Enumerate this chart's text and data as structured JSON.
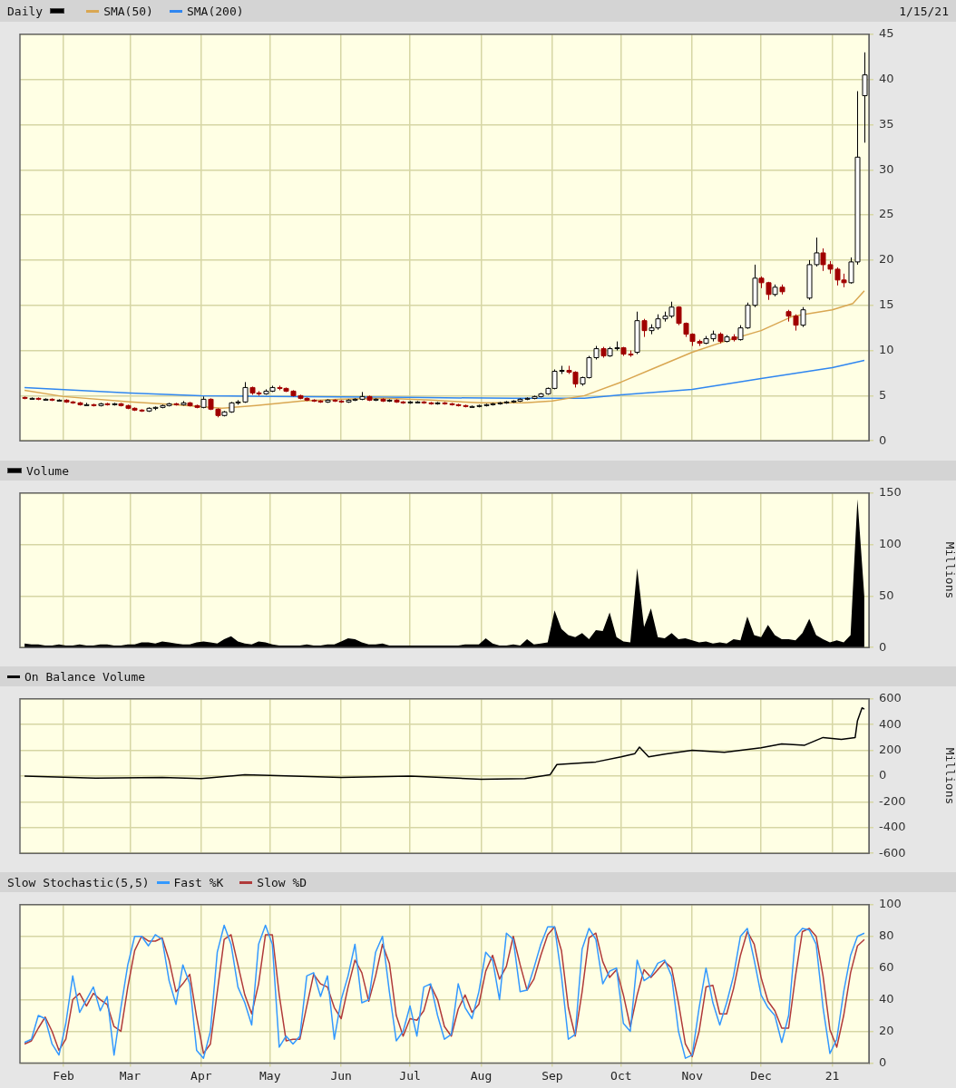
{
  "chart_data": [
    {
      "type": "candlestick",
      "title": "Daily",
      "color": "#000000",
      "legend": "top left",
      "annotations": [
        "1/15/21"
      ],
      "grid": true,
      "tick_labels": "y",
      "xlim": [
        "2020-01-13",
        "2021-01-17"
      ],
      "xticks": [
        {
          "value": "2020-02-01",
          "label": null
        },
        {
          "value": "2020-03-01",
          "label": null
        },
        {
          "value": "2020-04-01",
          "label": null
        },
        {
          "value": "2020-05-01",
          "label": null
        },
        {
          "value": "2020-06-01",
          "label": null
        },
        {
          "value": "2020-07-01",
          "label": null
        },
        {
          "value": "2020-08-01",
          "label": null
        },
        {
          "value": "2020-09-01",
          "label": null
        },
        {
          "value": "2020-10-01",
          "label": null
        },
        {
          "value": "2020-11-01",
          "label": null
        },
        {
          "value": "2020-12-01",
          "label": null
        },
        {
          "value": "2021-01-01",
          "label": null
        }
      ],
      "ylim": [
        0,
        45
      ],
      "yticks": [
        0,
        5,
        10,
        15,
        20,
        25,
        30,
        35,
        40,
        45
      ],
      "x": [
        "2020-01-15",
        "2020-01-18",
        "2020-01-21",
        "2020-01-24",
        "2020-01-27",
        "2020-01-30",
        "2020-02-02",
        "2020-02-05",
        "2020-02-08",
        "2020-02-11",
        "2020-02-14",
        "2020-02-17",
        "2020-02-20",
        "2020-02-23",
        "2020-02-26",
        "2020-02-29",
        "2020-03-03",
        "2020-03-06",
        "2020-03-09",
        "2020-03-12",
        "2020-03-15",
        "2020-03-18",
        "2020-03-21",
        "2020-03-24",
        "2020-03-27",
        "2020-03-30",
        "2020-04-02",
        "2020-04-05",
        "2020-04-08",
        "2020-04-11",
        "2020-04-14",
        "2020-04-17",
        "2020-04-20",
        "2020-04-23",
        "2020-04-26",
        "2020-04-29",
        "2020-05-02",
        "2020-05-05",
        "2020-05-08",
        "2020-05-11",
        "2020-05-14",
        "2020-05-17",
        "2020-05-20",
        "2020-05-23",
        "2020-05-26",
        "2020-05-29",
        "2020-06-01",
        "2020-06-04",
        "2020-06-07",
        "2020-06-10",
        "2020-06-13",
        "2020-06-16",
        "2020-06-19",
        "2020-06-22",
        "2020-06-25",
        "2020-06-28",
        "2020-07-01",
        "2020-07-04",
        "2020-07-07",
        "2020-07-10",
        "2020-07-13",
        "2020-07-16",
        "2020-07-19",
        "2020-07-22",
        "2020-07-25",
        "2020-07-28",
        "2020-07-31",
        "2020-08-03",
        "2020-08-06",
        "2020-08-09",
        "2020-08-12",
        "2020-08-15",
        "2020-08-18",
        "2020-08-21",
        "2020-08-24",
        "2020-08-27",
        "2020-08-30",
        "2020-09-02",
        "2020-09-05",
        "2020-09-08",
        "2020-09-11",
        "2020-09-14",
        "2020-09-17",
        "2020-09-20",
        "2020-09-23",
        "2020-09-26",
        "2020-09-29",
        "2020-10-02",
        "2020-10-05",
        "2020-10-08",
        "2020-10-11",
        "2020-10-14",
        "2020-10-17",
        "2020-10-20",
        "2020-10-23",
        "2020-10-26",
        "2020-10-29",
        "2020-11-01",
        "2020-11-04",
        "2020-11-07",
        "2020-11-10",
        "2020-11-13",
        "2020-11-16",
        "2020-11-19",
        "2020-11-22",
        "2020-11-25",
        "2020-11-28",
        "2020-12-01",
        "2020-12-04",
        "2020-12-07",
        "2020-12-10",
        "2020-12-13",
        "2020-12-16",
        "2020-12-19",
        "2020-12-22",
        "2020-12-25",
        "2020-12-28",
        "2020-12-31",
        "2021-01-03",
        "2021-01-06",
        "2021-01-09",
        "2021-01-12",
        "2021-01-15"
      ],
      "ohlc": [
        [
          4.8,
          4.9,
          4.6,
          4.7
        ],
        [
          4.7,
          4.8,
          4.6,
          4.7
        ],
        [
          4.7,
          4.8,
          4.5,
          4.6
        ],
        [
          4.6,
          4.7,
          4.5,
          4.6
        ],
        [
          4.6,
          4.7,
          4.4,
          4.5
        ],
        [
          4.5,
          4.6,
          4.4,
          4.5
        ],
        [
          4.5,
          4.6,
          4.2,
          4.3
        ],
        [
          4.3,
          4.4,
          4.1,
          4.2
        ],
        [
          4.2,
          4.3,
          3.9,
          4.0
        ],
        [
          4.0,
          4.2,
          3.9,
          4.0
        ],
        [
          4.0,
          4.1,
          3.8,
          3.9
        ],
        [
          3.9,
          4.2,
          3.8,
          4.1
        ],
        [
          4.1,
          4.2,
          3.9,
          4.0
        ],
        [
          4.0,
          4.2,
          3.9,
          4.1
        ],
        [
          4.1,
          4.2,
          3.8,
          3.9
        ],
        [
          3.9,
          4.0,
          3.5,
          3.6
        ],
        [
          3.6,
          3.7,
          3.3,
          3.4
        ],
        [
          3.4,
          3.5,
          3.2,
          3.3
        ],
        [
          3.3,
          3.7,
          3.2,
          3.6
        ],
        [
          3.6,
          3.8,
          3.4,
          3.7
        ],
        [
          3.7,
          4.0,
          3.6,
          3.9
        ],
        [
          3.9,
          4.2,
          3.8,
          4.1
        ],
        [
          4.1,
          4.2,
          3.9,
          4.0
        ],
        [
          4.0,
          4.4,
          3.9,
          4.2
        ],
        [
          4.2,
          4.3,
          3.8,
          3.9
        ],
        [
          3.9,
          4.0,
          3.6,
          3.7
        ],
        [
          3.7,
          4.9,
          3.6,
          4.6
        ],
        [
          4.6,
          4.7,
          3.4,
          3.5
        ],
        [
          3.5,
          3.6,
          2.6,
          2.8
        ],
        [
          2.8,
          3.3,
          2.7,
          3.2
        ],
        [
          3.2,
          4.3,
          3.1,
          4.2
        ],
        [
          4.2,
          4.5,
          4.0,
          4.3
        ],
        [
          4.3,
          6.5,
          4.2,
          5.9
        ],
        [
          5.9,
          6.0,
          5.1,
          5.3
        ],
        [
          5.3,
          5.5,
          5.0,
          5.2
        ],
        [
          5.2,
          5.7,
          5.1,
          5.5
        ],
        [
          5.5,
          6.1,
          5.4,
          5.9
        ],
        [
          5.9,
          6.1,
          5.6,
          5.8
        ],
        [
          5.8,
          5.9,
          5.4,
          5.5
        ],
        [
          5.5,
          5.6,
          4.9,
          5.0
        ],
        [
          5.0,
          5.1,
          4.6,
          4.7
        ],
        [
          4.7,
          4.8,
          4.4,
          4.5
        ],
        [
          4.5,
          4.6,
          4.3,
          4.4
        ],
        [
          4.4,
          4.5,
          4.2,
          4.3
        ],
        [
          4.3,
          4.6,
          4.2,
          4.5
        ],
        [
          4.5,
          4.6,
          4.3,
          4.4
        ],
        [
          4.4,
          4.5,
          4.2,
          4.3
        ],
        [
          4.3,
          4.6,
          4.2,
          4.5
        ],
        [
          4.5,
          4.7,
          4.4,
          4.6
        ],
        [
          4.6,
          5.4,
          4.5,
          4.9
        ],
        [
          4.9,
          5.0,
          4.4,
          4.5
        ],
        [
          4.5,
          4.7,
          4.4,
          4.6
        ],
        [
          4.6,
          4.7,
          4.3,
          4.4
        ],
        [
          4.4,
          4.6,
          4.3,
          4.5
        ],
        [
          4.5,
          4.6,
          4.2,
          4.3
        ],
        [
          4.3,
          4.4,
          4.1,
          4.2
        ],
        [
          4.2,
          4.4,
          4.1,
          4.3
        ],
        [
          4.3,
          4.4,
          4.2,
          4.3
        ],
        [
          4.3,
          4.4,
          4.1,
          4.2
        ],
        [
          4.2,
          4.3,
          4.0,
          4.1
        ],
        [
          4.1,
          4.3,
          4.0,
          4.2
        ],
        [
          4.2,
          4.3,
          4.0,
          4.1
        ],
        [
          4.1,
          4.2,
          3.9,
          4.0
        ],
        [
          4.0,
          4.1,
          3.8,
          3.9
        ],
        [
          3.9,
          4.0,
          3.7,
          3.8
        ],
        [
          3.8,
          3.9,
          3.7,
          3.8
        ],
        [
          3.8,
          4.0,
          3.7,
          3.9
        ],
        [
          3.9,
          4.1,
          3.8,
          4.0
        ],
        [
          4.0,
          4.2,
          3.9,
          4.1
        ],
        [
          4.1,
          4.3,
          4.0,
          4.2
        ],
        [
          4.2,
          4.4,
          4.1,
          4.3
        ],
        [
          4.3,
          4.5,
          4.2,
          4.4
        ],
        [
          4.4,
          4.7,
          4.3,
          4.6
        ],
        [
          4.6,
          4.8,
          4.5,
          4.7
        ],
        [
          4.7,
          5.0,
          4.6,
          4.9
        ],
        [
          4.9,
          5.3,
          4.8,
          5.2
        ],
        [
          5.2,
          5.9,
          5.1,
          5.8
        ],
        [
          5.8,
          7.9,
          5.7,
          7.7
        ],
        [
          7.7,
          8.3,
          7.4,
          7.8
        ],
        [
          7.8,
          8.3,
          7.4,
          7.6
        ],
        [
          7.6,
          7.7,
          5.9,
          6.3
        ],
        [
          6.3,
          7.1,
          6.1,
          7.0
        ],
        [
          7.0,
          9.4,
          6.9,
          9.2
        ],
        [
          9.2,
          10.5,
          9.0,
          10.2
        ],
        [
          10.2,
          10.4,
          9.2,
          9.4
        ],
        [
          9.4,
          10.4,
          9.3,
          10.2
        ],
        [
          10.2,
          11.0,
          10.0,
          10.3
        ],
        [
          10.3,
          10.4,
          9.4,
          9.6
        ],
        [
          9.6,
          10.0,
          9.3,
          9.5
        ],
        [
          9.8,
          14.3,
          9.6,
          13.3
        ],
        [
          13.3,
          13.5,
          11.5,
          12.2
        ],
        [
          12.2,
          12.9,
          11.8,
          12.5
        ],
        [
          12.5,
          14.0,
          12.3,
          13.5
        ],
        [
          13.5,
          14.3,
          13.2,
          13.8
        ],
        [
          13.8,
          15.4,
          13.6,
          14.8
        ],
        [
          14.8,
          14.9,
          12.8,
          13.0
        ],
        [
          13.0,
          13.1,
          11.5,
          11.8
        ],
        [
          11.8,
          11.9,
          10.5,
          11.0
        ],
        [
          11.0,
          11.2,
          10.5,
          10.8
        ],
        [
          10.8,
          11.6,
          10.7,
          11.3
        ],
        [
          11.3,
          12.2,
          11.0,
          11.8
        ],
        [
          11.8,
          12.0,
          10.8,
          11.0
        ],
        [
          11.0,
          11.7,
          10.9,
          11.5
        ],
        [
          11.5,
          11.8,
          11.0,
          11.2
        ],
        [
          11.2,
          12.8,
          11.1,
          12.5
        ],
        [
          12.5,
          15.3,
          12.4,
          15.0
        ],
        [
          15.0,
          19.5,
          14.8,
          18.0
        ],
        [
          18.0,
          18.2,
          16.9,
          17.5
        ],
        [
          17.5,
          17.6,
          15.6,
          16.2
        ],
        [
          16.2,
          17.3,
          16.0,
          17.0
        ],
        [
          17.0,
          17.3,
          16.2,
          16.5
        ],
        [
          14.3,
          14.5,
          13.2,
          13.8
        ],
        [
          13.8,
          14.0,
          12.2,
          12.8
        ],
        [
          12.8,
          14.8,
          12.6,
          14.5
        ],
        [
          15.8,
          20.0,
          15.6,
          19.5
        ],
        [
          19.5,
          22.5,
          19.3,
          20.8
        ],
        [
          20.8,
          21.3,
          18.8,
          19.5
        ],
        [
          19.5,
          19.9,
          18.5,
          19.0
        ],
        [
          19.0,
          19.2,
          17.2,
          17.8
        ],
        [
          17.8,
          18.5,
          17.0,
          17.5
        ],
        [
          17.5,
          20.3,
          17.4,
          19.8
        ],
        [
          19.8,
          38.7,
          19.5,
          31.4
        ],
        [
          38.2,
          43.0,
          33.0,
          40.5
        ]
      ],
      "colors": [
        "#a00000",
        "#ffffff",
        "#a00000",
        "#ffffff",
        "#a00000",
        "#ffffff",
        "#a00000",
        "#a00000",
        "#a00000",
        "#ffffff",
        "#a00000",
        "#ffffff",
        "#a00000",
        "#ffffff",
        "#a00000",
        "#a00000",
        "#a00000",
        "#a00000",
        "#ffffff",
        "#ffffff",
        "#ffffff",
        "#ffffff",
        "#a00000",
        "#ffffff",
        "#a00000",
        "#a00000",
        "#ffffff",
        "#a00000",
        "#a00000",
        "#ffffff",
        "#ffffff",
        "#ffffff",
        "#ffffff",
        "#a00000",
        "#a00000",
        "#ffffff",
        "#ffffff",
        "#a00000",
        "#a00000",
        "#a00000",
        "#a00000",
        "#a00000",
        "#a00000",
        "#a00000",
        "#ffffff",
        "#a00000",
        "#a00000",
        "#ffffff",
        "#ffffff",
        "#ffffff",
        "#a00000",
        "#ffffff",
        "#a00000",
        "#ffffff",
        "#a00000",
        "#a00000",
        "#ffffff",
        "#ffffff",
        "#a00000",
        "#a00000",
        "#ffffff",
        "#a00000",
        "#a00000",
        "#a00000",
        "#a00000",
        "#ffffff",
        "#ffffff",
        "#ffffff",
        "#ffffff",
        "#ffffff",
        "#ffffff",
        "#ffffff",
        "#ffffff",
        "#ffffff",
        "#ffffff",
        "#ffffff",
        "#ffffff",
        "#ffffff",
        "#ffffff",
        "#a00000",
        "#a00000",
        "#ffffff",
        "#ffffff",
        "#ffffff",
        "#a00000",
        "#ffffff",
        "#ffffff",
        "#a00000",
        "#a00000",
        "#ffffff",
        "#a00000",
        "#ffffff",
        "#ffffff",
        "#ffffff",
        "#ffffff",
        "#a00000",
        "#a00000",
        "#a00000",
        "#a00000",
        "#ffffff",
        "#ffffff",
        "#a00000",
        "#ffffff",
        "#a00000",
        "#ffffff",
        "#ffffff",
        "#ffffff",
        "#a00000",
        "#a00000",
        "#ffffff",
        "#a00000",
        "#a00000",
        "#a00000",
        "#ffffff",
        "#ffffff",
        "#ffffff",
        "#a00000",
        "#a00000",
        "#a00000",
        "#a00000",
        "#ffffff",
        "#ffffff",
        "#ffffff"
      ],
      "series": [
        {
          "name": "SMA(50)",
          "type": "line",
          "color": "#d9a752",
          "x": [
            "2020-01-15",
            "2020-02-01",
            "2020-03-01",
            "2020-03-20",
            "2020-04-10",
            "2020-04-25",
            "2020-05-15",
            "2020-06-01",
            "2020-06-20",
            "2020-07-10",
            "2020-08-01",
            "2020-08-20",
            "2020-09-01",
            "2020-09-15",
            "2020-10-01",
            "2020-10-15",
            "2020-11-01",
            "2020-11-15",
            "2020-12-01",
            "2020-12-15",
            "2021-01-01",
            "2021-01-10",
            "2021-01-15"
          ],
          "values": [
            5.6,
            4.9,
            4.3,
            4.0,
            3.6,
            3.9,
            4.4,
            4.6,
            4.7,
            4.5,
            4.2,
            4.2,
            4.4,
            5.0,
            6.5,
            8.0,
            9.8,
            11.0,
            12.2,
            13.8,
            14.5,
            15.2,
            16.6
          ]
        },
        {
          "name": "SMA(200)",
          "type": "line",
          "color": "#2f86f0",
          "x": [
            "2020-01-15",
            "2020-03-01",
            "2020-04-01",
            "2020-05-01",
            "2020-07-01",
            "2020-08-15",
            "2020-09-15",
            "2020-10-01",
            "2020-11-01",
            "2020-12-01",
            "2021-01-01",
            "2021-01-15"
          ],
          "values": [
            5.9,
            5.3,
            5.0,
            4.9,
            4.8,
            4.7,
            4.7,
            5.1,
            5.7,
            6.9,
            8.1,
            8.9
          ]
        }
      ]
    },
    {
      "type": "area",
      "legend": "top left",
      "grid": true,
      "tick_labels": "y",
      "ylabel": "Millions",
      "xlim": [
        "2020-01-13",
        "2021-01-17"
      ],
      "xticks": [
        {
          "value": "2020-02-01",
          "label": null
        },
        {
          "value": "2020-03-01",
          "label": null
        },
        {
          "value": "2020-04-01",
          "label": null
        },
        {
          "value": "2020-05-01",
          "label": null
        },
        {
          "value": "2020-06-01",
          "label": null
        },
        {
          "value": "2020-07-01",
          "label": null
        },
        {
          "value": "2020-08-01",
          "label": null
        },
        {
          "value": "2020-09-01",
          "label": null
        },
        {
          "value": "2020-10-01",
          "label": null
        },
        {
          "value": "2020-11-01",
          "label": null
        },
        {
          "value": "2020-12-01",
          "label": null
        },
        {
          "value": "2021-01-01",
          "label": null
        }
      ],
      "ylim": [
        0,
        150
      ],
      "yticks": [
        0,
        50,
        100,
        150
      ],
      "x": [
        "2020-01-15",
        "2020-01-18",
        "2020-01-21",
        "2020-01-24",
        "2020-01-27",
        "2020-01-30",
        "2020-02-02",
        "2020-02-05",
        "2020-02-08",
        "2020-02-11",
        "2020-02-14",
        "2020-02-17",
        "2020-02-20",
        "2020-02-23",
        "2020-02-26",
        "2020-02-29",
        "2020-03-03",
        "2020-03-06",
        "2020-03-09",
        "2020-03-12",
        "2020-03-15",
        "2020-03-18",
        "2020-03-21",
        "2020-03-24",
        "2020-03-27",
        "2020-03-30",
        "2020-04-02",
        "2020-04-05",
        "2020-04-08",
        "2020-04-11",
        "2020-04-14",
        "2020-04-17",
        "2020-04-20",
        "2020-04-23",
        "2020-04-26",
        "2020-04-29",
        "2020-05-02",
        "2020-05-05",
        "2020-05-08",
        "2020-05-11",
        "2020-05-14",
        "2020-05-17",
        "2020-05-20",
        "2020-05-23",
        "2020-05-26",
        "2020-05-29",
        "2020-06-01",
        "2020-06-04",
        "2020-06-07",
        "2020-06-10",
        "2020-06-13",
        "2020-06-16",
        "2020-06-19",
        "2020-06-22",
        "2020-06-25",
        "2020-06-28",
        "2020-07-01",
        "2020-07-04",
        "2020-07-07",
        "2020-07-10",
        "2020-07-13",
        "2020-07-16",
        "2020-07-19",
        "2020-07-22",
        "2020-07-25",
        "2020-07-28",
        "2020-07-31",
        "2020-08-03",
        "2020-08-06",
        "2020-08-09",
        "2020-08-12",
        "2020-08-15",
        "2020-08-18",
        "2020-08-21",
        "2020-08-24",
        "2020-08-27",
        "2020-08-30",
        "2020-09-02",
        "2020-09-05",
        "2020-09-08",
        "2020-09-11",
        "2020-09-14",
        "2020-09-17",
        "2020-09-20",
        "2020-09-23",
        "2020-09-26",
        "2020-09-29",
        "2020-10-02",
        "2020-10-05",
        "2020-10-08",
        "2020-10-11",
        "2020-10-14",
        "2020-10-17",
        "2020-10-20",
        "2020-10-23",
        "2020-10-26",
        "2020-10-29",
        "2020-11-01",
        "2020-11-04",
        "2020-11-07",
        "2020-11-10",
        "2020-11-13",
        "2020-11-16",
        "2020-11-19",
        "2020-11-22",
        "2020-11-25",
        "2020-11-28",
        "2020-12-01",
        "2020-12-04",
        "2020-12-07",
        "2020-12-10",
        "2020-12-13",
        "2020-12-16",
        "2020-12-19",
        "2020-12-22",
        "2020-12-25",
        "2020-12-28",
        "2020-12-31",
        "2021-01-03",
        "2021-01-06",
        "2021-01-09",
        "2021-01-12",
        "2021-01-15"
      ],
      "series": [
        {
          "name": "Volume",
          "color": "#000000",
          "values": [
            4,
            3,
            3,
            2,
            2,
            3,
            2,
            2,
            3,
            2,
            2,
            3,
            3,
            2,
            2,
            3,
            3,
            5,
            5,
            4,
            6,
            5,
            4,
            3,
            3,
            5,
            6,
            5,
            4,
            8,
            11,
            6,
            4,
            3,
            6,
            5,
            3,
            2,
            2,
            2,
            2,
            3,
            2,
            2,
            3,
            3,
            6,
            9,
            8,
            5,
            3,
            3,
            4,
            2,
            2,
            2,
            2,
            2,
            2,
            2,
            2,
            2,
            2,
            2,
            3,
            3,
            3,
            9,
            4,
            2,
            2,
            3,
            2,
            8,
            3,
            4,
            5,
            36,
            18,
            12,
            10,
            14,
            8,
            17,
            16,
            34,
            10,
            6,
            5,
            77,
            20,
            38,
            10,
            9,
            14,
            8,
            9,
            7,
            5,
            6,
            4,
            5,
            4,
            8,
            7,
            30,
            12,
            10,
            22,
            12,
            8,
            8,
            7,
            14,
            28,
            12,
            8,
            5,
            7,
            5,
            12,
            144,
            50
          ]
        }
      ]
    },
    {
      "type": "line",
      "legend": "top left",
      "grid": true,
      "tick_labels": "y",
      "ylabel": "Millions",
      "xlim": [
        "2020-01-13",
        "2021-01-17"
      ],
      "xticks": [
        {
          "value": "2020-02-01",
          "label": null
        },
        {
          "value": "2020-03-01",
          "label": null
        },
        {
          "value": "2020-04-01",
          "label": null
        },
        {
          "value": "2020-05-01",
          "label": null
        },
        {
          "value": "2020-06-01",
          "label": null
        },
        {
          "value": "2020-07-01",
          "label": null
        },
        {
          "value": "2020-08-01",
          "label": null
        },
        {
          "value": "2020-09-01",
          "label": null
        },
        {
          "value": "2020-10-01",
          "label": null
        },
        {
          "value": "2020-11-01",
          "label": null
        },
        {
          "value": "2020-12-01",
          "label": null
        },
        {
          "value": "2021-01-01",
          "label": null
        }
      ],
      "ylim": [
        -600,
        600
      ],
      "yticks": [
        -600,
        -400,
        -200,
        0,
        200,
        400,
        600
      ],
      "series": [
        {
          "name": "On Balance Volume",
          "color": "#000000",
          "x": [
            "2020-01-15",
            "2020-02-15",
            "2020-03-15",
            "2020-04-01",
            "2020-04-20",
            "2020-05-01",
            "2020-06-01",
            "2020-07-01",
            "2020-08-01",
            "2020-08-20",
            "2020-08-31",
            "2020-09-03",
            "2020-09-20",
            "2020-10-01",
            "2020-10-07",
            "2020-10-09",
            "2020-10-13",
            "2020-10-20",
            "2020-11-01",
            "2020-11-15",
            "2020-12-01",
            "2020-12-10",
            "2020-12-20",
            "2020-12-28",
            "2021-01-05",
            "2021-01-11",
            "2021-01-12",
            "2021-01-14",
            "2021-01-15"
          ],
          "values": [
            0,
            -15,
            -10,
            -20,
            10,
            5,
            -10,
            0,
            -25,
            -20,
            10,
            90,
            110,
            150,
            175,
            225,
            150,
            170,
            200,
            185,
            220,
            250,
            240,
            300,
            285,
            300,
            430,
            530,
            520
          ]
        }
      ]
    },
    {
      "type": "line",
      "title": "Slow Stochastic(5,5)",
      "legend": "top left",
      "grid": true,
      "xlim": [
        "2020-01-13",
        "2021-01-17"
      ],
      "xticks": [
        {
          "value": "2020-02-01",
          "label": "Feb"
        },
        {
          "value": "2020-03-01",
          "label": "Mar"
        },
        {
          "value": "2020-04-01",
          "label": "Apr"
        },
        {
          "value": "2020-05-01",
          "label": "May"
        },
        {
          "value": "2020-06-01",
          "label": "Jun"
        },
        {
          "value": "2020-07-01",
          "label": "Jul"
        },
        {
          "value": "2020-08-01",
          "label": "Aug"
        },
        {
          "value": "2020-09-01",
          "label": "Sep"
        },
        {
          "value": "2020-10-01",
          "label": "Oct"
        },
        {
          "value": "2020-11-01",
          "label": "Nov"
        },
        {
          "value": "2020-12-01",
          "label": "Dec"
        },
        {
          "value": "2021-01-01",
          "label": "21"
        }
      ],
      "ylim": [
        0,
        100
      ],
      "yticks": [
        0,
        20,
        40,
        60,
        80,
        100
      ],
      "x": [
        "2020-01-15",
        "2020-01-18",
        "2020-01-21",
        "2020-01-24",
        "2020-01-27",
        "2020-01-30",
        "2020-02-02",
        "2020-02-05",
        "2020-02-08",
        "2020-02-11",
        "2020-02-14",
        "2020-02-17",
        "2020-02-20",
        "2020-02-23",
        "2020-02-26",
        "2020-02-29",
        "2020-03-03",
        "2020-03-06",
        "2020-03-09",
        "2020-03-12",
        "2020-03-15",
        "2020-03-18",
        "2020-03-21",
        "2020-03-24",
        "2020-03-27",
        "2020-03-30",
        "2020-04-02",
        "2020-04-05",
        "2020-04-08",
        "2020-04-11",
        "2020-04-14",
        "2020-04-17",
        "2020-04-20",
        "2020-04-23",
        "2020-04-26",
        "2020-04-29",
        "2020-05-02",
        "2020-05-05",
        "2020-05-08",
        "2020-05-11",
        "2020-05-14",
        "2020-05-17",
        "2020-05-20",
        "2020-05-23",
        "2020-05-26",
        "2020-05-29",
        "2020-06-01",
        "2020-06-04",
        "2020-06-07",
        "2020-06-10",
        "2020-06-13",
        "2020-06-16",
        "2020-06-19",
        "2020-06-22",
        "2020-06-25",
        "2020-06-28",
        "2020-07-01",
        "2020-07-04",
        "2020-07-07",
        "2020-07-10",
        "2020-07-13",
        "2020-07-16",
        "2020-07-19",
        "2020-07-22",
        "2020-07-25",
        "2020-07-28",
        "2020-07-31",
        "2020-08-03",
        "2020-08-06",
        "2020-08-09",
        "2020-08-12",
        "2020-08-15",
        "2020-08-18",
        "2020-08-21",
        "2020-08-24",
        "2020-08-27",
        "2020-08-30",
        "2020-09-02",
        "2020-09-05",
        "2020-09-08",
        "2020-09-11",
        "2020-09-14",
        "2020-09-17",
        "2020-09-20",
        "2020-09-23",
        "2020-09-26",
        "2020-09-29",
        "2020-10-02",
        "2020-10-05",
        "2020-10-08",
        "2020-10-11",
        "2020-10-14",
        "2020-10-17",
        "2020-10-20",
        "2020-10-23",
        "2020-10-26",
        "2020-10-29",
        "2020-11-01",
        "2020-11-04",
        "2020-11-07",
        "2020-11-10",
        "2020-11-13",
        "2020-11-16",
        "2020-11-19",
        "2020-11-22",
        "2020-11-25",
        "2020-11-28",
        "2020-12-01",
        "2020-12-04",
        "2020-12-07",
        "2020-12-10",
        "2020-12-13",
        "2020-12-16",
        "2020-12-19",
        "2020-12-22",
        "2020-12-25",
        "2020-12-28",
        "2020-12-31",
        "2021-01-03",
        "2021-01-06",
        "2021-01-09",
        "2021-01-12",
        "2021-01-15"
      ],
      "series": [
        {
          "name": "Fast %K",
          "color": "#3399ff",
          "values": [
            13,
            15,
            30,
            28,
            12,
            5,
            25,
            55,
            32,
            40,
            48,
            33,
            42,
            5,
            35,
            62,
            80,
            80,
            74,
            81,
            78,
            52,
            37,
            62,
            50,
            8,
            3,
            20,
            70,
            87,
            75,
            48,
            38,
            24,
            75,
            87,
            75,
            10,
            17,
            12,
            17,
            55,
            57,
            42,
            55,
            15,
            40,
            55,
            75,
            38,
            40,
            70,
            80,
            45,
            14,
            20,
            36,
            17,
            48,
            50,
            30,
            15,
            18,
            50,
            35,
            28,
            45,
            70,
            65,
            40,
            82,
            78,
            45,
            46,
            60,
            75,
            86,
            86,
            55,
            15,
            18,
            72,
            85,
            78,
            50,
            58,
            60,
            25,
            20,
            65,
            52,
            55,
            63,
            65,
            55,
            20,
            3,
            5,
            35,
            60,
            38,
            24,
            38,
            55,
            80,
            85,
            65,
            43,
            35,
            30,
            13,
            30,
            80,
            85,
            84,
            75,
            35,
            6,
            15,
            45,
            68,
            80,
            82
          ]
        },
        {
          "name": "Slow %D",
          "color": "#b03a3a",
          "values": [
            12,
            14,
            22,
            29,
            20,
            8,
            15,
            40,
            44,
            36,
            44,
            40,
            37,
            23,
            20,
            48,
            71,
            80,
            77,
            77,
            79,
            65,
            45,
            50,
            56,
            29,
            6,
            12,
            45,
            78,
            81,
            62,
            43,
            31,
            50,
            81,
            81,
            43,
            14,
            15,
            15,
            36,
            56,
            50,
            48,
            35,
            28,
            48,
            65,
            57,
            39,
            55,
            75,
            63,
            30,
            17,
            28,
            27,
            33,
            49,
            40,
            23,
            17,
            34,
            43,
            32,
            37,
            58,
            68,
            53,
            61,
            80,
            62,
            46,
            53,
            68,
            81,
            86,
            71,
            35,
            17,
            45,
            79,
            82,
            64,
            54,
            59,
            43,
            23,
            43,
            59,
            54,
            59,
            64,
            60,
            38,
            12,
            4,
            20,
            48,
            49,
            31,
            31,
            47,
            68,
            83,
            75,
            54,
            39,
            33,
            22,
            22,
            55,
            83,
            85,
            80,
            55,
            21,
            10,
            30,
            57,
            74,
            78
          ]
        }
      ]
    }
  ]
}
